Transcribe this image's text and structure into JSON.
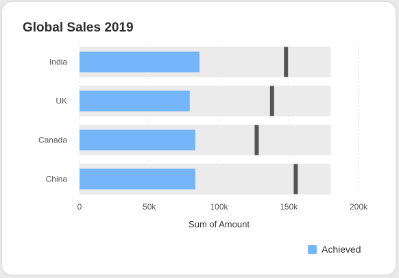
{
  "card": {
    "title": "Global Sales 2019"
  },
  "legend": {
    "achieved_label": "Achieved"
  },
  "colors": {
    "achieved": "#75b6fb",
    "range": "#ebebeb",
    "target": "#555555",
    "grid": "#dddddd"
  },
  "chart_data": {
    "type": "bar",
    "orientation": "horizontal",
    "subtype": "bullet",
    "title": "Global Sales 2019",
    "xlabel": "Sum of Amount",
    "ylabel": "",
    "categories": [
      "India",
      "UK",
      "Canada",
      "China"
    ],
    "series": [
      {
        "name": "Achieved",
        "values": [
          86000,
          79000,
          83000,
          83000
        ]
      }
    ],
    "targets": [
      148000,
      138000,
      127000,
      155000
    ],
    "range_max": [
      180000,
      180000,
      180000,
      180000
    ],
    "xlim": [
      0,
      200000
    ],
    "xticks": [
      0,
      50000,
      100000,
      150000,
      200000
    ],
    "xtick_labels": [
      "0",
      "50k",
      "100k",
      "150k",
      "200k"
    ],
    "grid": true,
    "legend_position": "bottom-right"
  }
}
